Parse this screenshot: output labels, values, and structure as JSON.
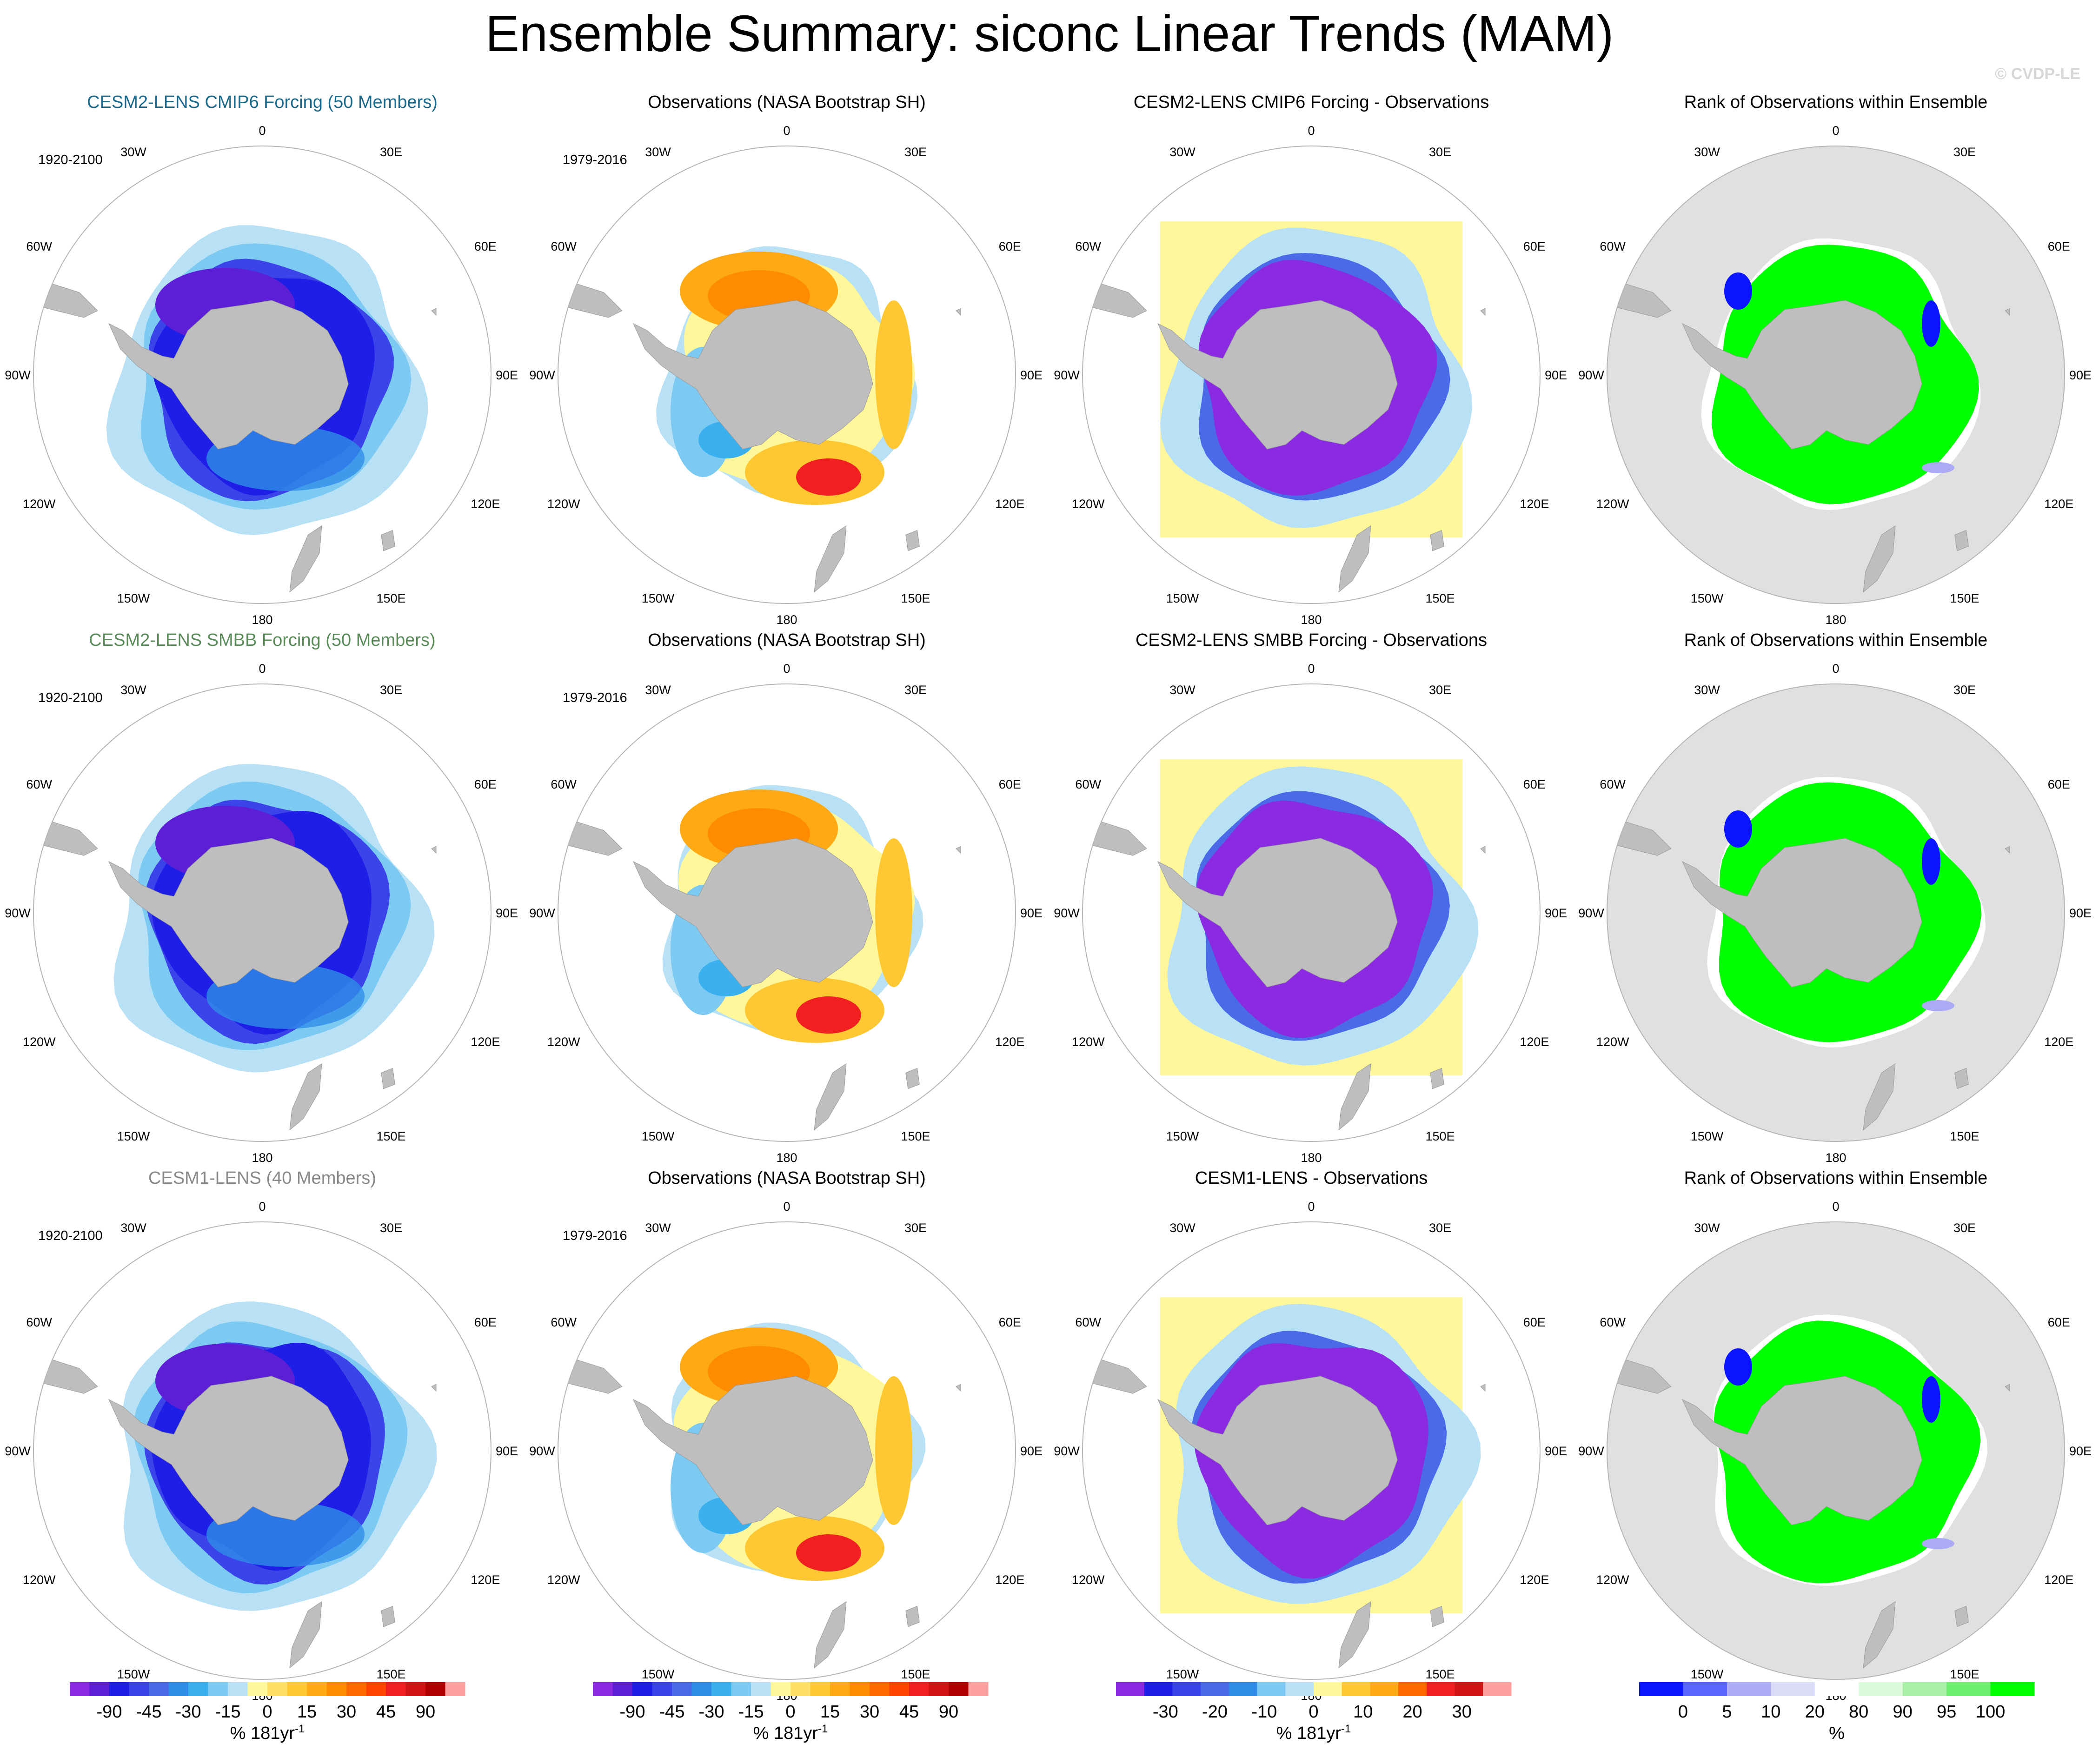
{
  "title": "Ensemble Summary: siconc Linear Trends (MAM)",
  "watermark": "© CVDP-LE",
  "lon_labels": [
    "0",
    "30E",
    "60E",
    "90E",
    "120E",
    "150E",
    "180",
    "150W",
    "120W",
    "90W",
    "60W",
    "30W"
  ],
  "rows": [
    {
      "model_title": "CESM2-LENS CMIP6 Forcing (50 Members)",
      "model_period": "1920-2100",
      "obs_title": "Observations (NASA Bootstrap SH)",
      "obs_period": "1979-2016",
      "diff_title": "CESM2-LENS CMIP6 Forcing - Observations",
      "rank_title": "Rank of Observations within Ensemble"
    },
    {
      "model_title": "CESM2-LENS SMBB Forcing (50 Members)",
      "model_period": "1920-2100",
      "obs_title": "Observations (NASA Bootstrap SH)",
      "obs_period": "1979-2016",
      "diff_title": "CESM2-LENS SMBB Forcing - Observations",
      "rank_title": "Rank of Observations within Ensemble"
    },
    {
      "model_title": "CESM1-LENS (40 Members)",
      "model_period": "1920-2100",
      "obs_title": "Observations (NASA Bootstrap SH)",
      "obs_period": "1979-2016",
      "diff_title": "CESM1-LENS - Observations",
      "rank_title": "Rank of Observations within Ensemble"
    }
  ],
  "colorbars": [
    {
      "ticks": [
        "-90",
        "-45",
        "-30",
        "-15",
        "0",
        "15",
        "30",
        "45",
        "90"
      ],
      "unit": "% 181yr",
      "sup": "-1",
      "colors": [
        "#8a2be2",
        "#5d1fd6",
        "#1e1ee6",
        "#3a44e8",
        "#4a6ae8",
        "#2f8de8",
        "#3ab1ee",
        "#7ccaf2",
        "#b9e1f5",
        "#fff79a",
        "#ffe066",
        "#ffc832",
        "#ffaa14",
        "#ff8c00",
        "#ff6a00",
        "#ff4500",
        "#f02020",
        "#d21414",
        "#b00000",
        "#ffa0a0"
      ]
    },
    {
      "ticks": [
        "-90",
        "-45",
        "-30",
        "-15",
        "0",
        "15",
        "30",
        "45",
        "90"
      ],
      "unit": "% 181yr",
      "sup": "-1",
      "colors": [
        "#8a2be2",
        "#5d1fd6",
        "#1e1ee6",
        "#3a44e8",
        "#4a6ae8",
        "#2f8de8",
        "#3ab1ee",
        "#7ccaf2",
        "#b9e1f5",
        "#fff79a",
        "#ffe066",
        "#ffc832",
        "#ffaa14",
        "#ff8c00",
        "#ff6a00",
        "#ff4500",
        "#f02020",
        "#d21414",
        "#b00000",
        "#ffa0a0"
      ]
    },
    {
      "ticks": [
        "-30",
        "-20",
        "-10",
        "0",
        "10",
        "20",
        "30"
      ],
      "unit": "% 181yr",
      "sup": "-1",
      "colors": [
        "#8a2be2",
        "#1e1ee6",
        "#3a44e8",
        "#4a6ae8",
        "#2f8de8",
        "#7ccaf2",
        "#b9e1f5",
        "#fff79a",
        "#ffc832",
        "#ffaa14",
        "#ff6a00",
        "#f02020",
        "#d21414",
        "#ffa0a0"
      ]
    },
    {
      "ticks": [
        "0",
        "5",
        "10",
        "20",
        "80",
        "90",
        "95",
        "100"
      ],
      "unit": "%",
      "sup": "",
      "colors": [
        "#0a14ff",
        "#5a64ff",
        "#aaaaf5",
        "#dcdcf8",
        "#ffffff",
        "#dcfadc",
        "#a8f0a8",
        "#6ef06e",
        "#00ff00"
      ]
    }
  ]
}
